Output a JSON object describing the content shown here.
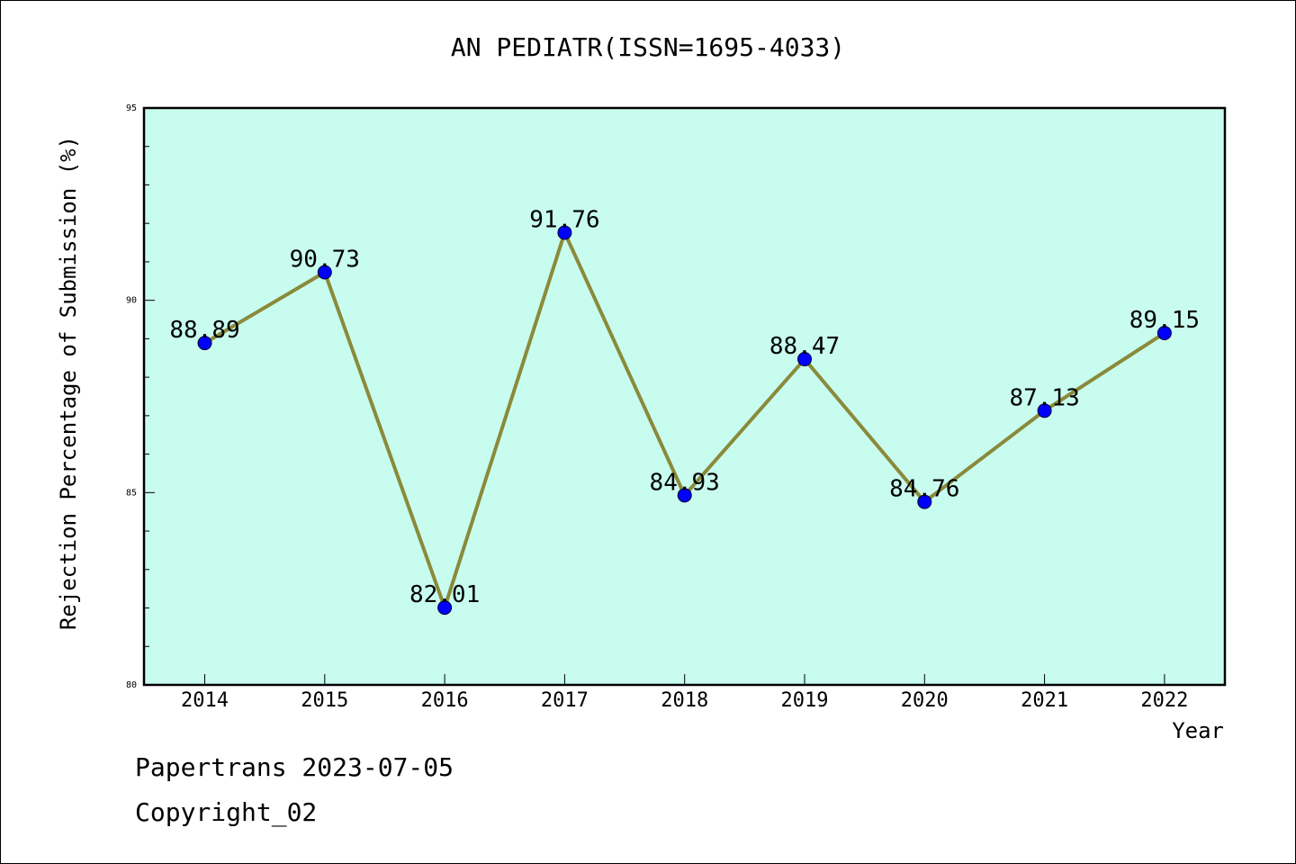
{
  "chart_data": {
    "type": "line",
    "title": "AN PEDIATR(ISSN=1695-4033)",
    "xlabel": "Year",
    "ylabel": "Rejection Percentage of Submission (%)",
    "categories": [
      "2014",
      "2015",
      "2016",
      "2017",
      "2018",
      "2019",
      "2020",
      "2021",
      "2022"
    ],
    "values": [
      88.89,
      90.73,
      82.01,
      91.76,
      84.93,
      88.47,
      84.76,
      87.13,
      89.15
    ],
    "data_labels": [
      "88.89",
      "90.73",
      "82.01",
      "91.76",
      "84.93",
      "88.47",
      "84.76",
      "87.13",
      "89.15"
    ],
    "ylim": [
      80,
      95
    ],
    "yticks": [
      "80",
      "85",
      "90",
      "95"
    ],
    "grid": false,
    "colors": {
      "plot_background": "#c8fcef",
      "line": "#8a8a3a",
      "marker": "#0000ff"
    }
  },
  "footer": {
    "line1": "Papertrans 2023-07-05",
    "line2": "Copyright_02"
  }
}
